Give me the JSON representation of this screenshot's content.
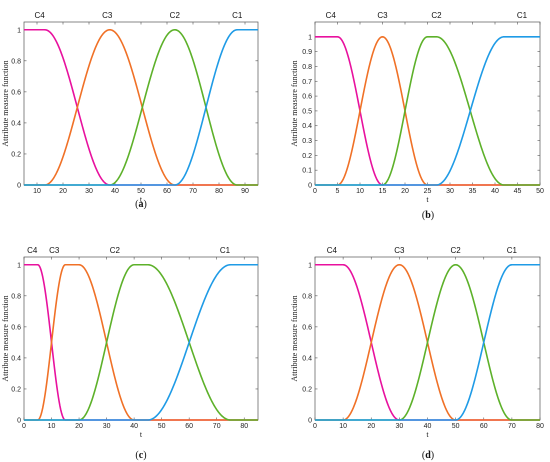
{
  "colors": {
    "C1": "#1f9be6",
    "C2": "#5db12a",
    "C3": "#f07127",
    "C4": "#e8119e"
  },
  "chart_data": [
    {
      "type": "line",
      "caption": "(a)",
      "xlabel": "t",
      "ylabel": "Attribute measure function",
      "xlim": [
        5,
        95
      ],
      "ylim": [
        0,
        1.05
      ],
      "xticks": [
        10,
        20,
        30,
        40,
        50,
        60,
        70,
        80,
        90
      ],
      "yticks": [
        0,
        0.2,
        0.4,
        0.6,
        0.8,
        1
      ],
      "series": [
        {
          "name": "C4",
          "shape": "down",
          "b": 13,
          "c": 38
        },
        {
          "name": "C3",
          "shape": "bell",
          "a": 13,
          "b": 38,
          "c": 38,
          "d": 63
        },
        {
          "name": "C2",
          "shape": "bell",
          "a": 38,
          "b": 63,
          "c": 63,
          "d": 87
        },
        {
          "name": "C1",
          "shape": "up",
          "a": 63,
          "b": 87
        }
      ],
      "labels": [
        {
          "text": "C4",
          "x": 11
        },
        {
          "text": "C3",
          "x": 37
        },
        {
          "text": "C2",
          "x": 63
        },
        {
          "text": "C1",
          "x": 87
        }
      ]
    },
    {
      "type": "line",
      "caption": "(b)",
      "xlabel": "t",
      "ylabel": "Attribute measure function",
      "xlim": [
        0,
        50
      ],
      "ylim": [
        0,
        1.1
      ],
      "xticks": [
        0,
        5,
        10,
        15,
        20,
        25,
        30,
        35,
        40,
        45,
        50
      ],
      "yticks": [
        0,
        0.1,
        0.2,
        0.3,
        0.4,
        0.5,
        0.6,
        0.7,
        0.8,
        0.9,
        1
      ],
      "series": [
        {
          "name": "C4",
          "shape": "down",
          "b": 5,
          "c": 15
        },
        {
          "name": "C3",
          "shape": "bell",
          "a": 5,
          "b": 15,
          "c": 15,
          "d": 25
        },
        {
          "name": "C2",
          "shape": "bell",
          "a": 15,
          "b": 25,
          "c": 27,
          "d": 42
        },
        {
          "name": "C1",
          "shape": "up",
          "a": 27,
          "b": 42
        }
      ],
      "labels": [
        {
          "text": "C4",
          "x": 3.5
        },
        {
          "text": "C3",
          "x": 15
        },
        {
          "text": "C2",
          "x": 27
        },
        {
          "text": "C1",
          "x": 46
        }
      ]
    },
    {
      "type": "line",
      "caption": "(c)",
      "xlabel": "t",
      "ylabel": "Attribute measure function",
      "xlim": [
        0,
        85
      ],
      "ylim": [
        0,
        1.05
      ],
      "xticks": [
        0,
        10,
        20,
        30,
        40,
        50,
        60,
        70,
        80
      ],
      "yticks": [
        0,
        0.2,
        0.4,
        0.6,
        0.8,
        1
      ],
      "series": [
        {
          "name": "C4",
          "shape": "down",
          "b": 5,
          "c": 15
        },
        {
          "name": "C3",
          "shape": "bell",
          "a": 5,
          "b": 15,
          "c": 20,
          "d": 40
        },
        {
          "name": "C2",
          "shape": "bell",
          "a": 20,
          "b": 40,
          "c": 45,
          "d": 75
        },
        {
          "name": "C1",
          "shape": "up",
          "a": 45,
          "b": 75
        }
      ],
      "labels": [
        {
          "text": "C4",
          "x": 3
        },
        {
          "text": "C3",
          "x": 11
        },
        {
          "text": "C2",
          "x": 33
        },
        {
          "text": "C1",
          "x": 73
        }
      ]
    },
    {
      "type": "line",
      "caption": "(d)",
      "xlabel": "t",
      "ylabel": "Attribute measure function",
      "xlim": [
        0,
        80
      ],
      "ylim": [
        0,
        1.05
      ],
      "xticks": [
        0,
        10,
        20,
        30,
        40,
        50,
        60,
        70,
        80
      ],
      "yticks": [
        0,
        0.2,
        0.4,
        0.6,
        0.8,
        1
      ],
      "series": [
        {
          "name": "C4",
          "shape": "down",
          "b": 10,
          "c": 30
        },
        {
          "name": "C3",
          "shape": "bell",
          "a": 10,
          "b": 30,
          "c": 30,
          "d": 50
        },
        {
          "name": "C2",
          "shape": "bell",
          "a": 30,
          "b": 50,
          "c": 50,
          "d": 70
        },
        {
          "name": "C1",
          "shape": "up",
          "a": 50,
          "b": 70
        }
      ],
      "labels": [
        {
          "text": "C4",
          "x": 6
        },
        {
          "text": "C3",
          "x": 30
        },
        {
          "text": "C2",
          "x": 50
        },
        {
          "text": "C1",
          "x": 70
        }
      ]
    }
  ]
}
